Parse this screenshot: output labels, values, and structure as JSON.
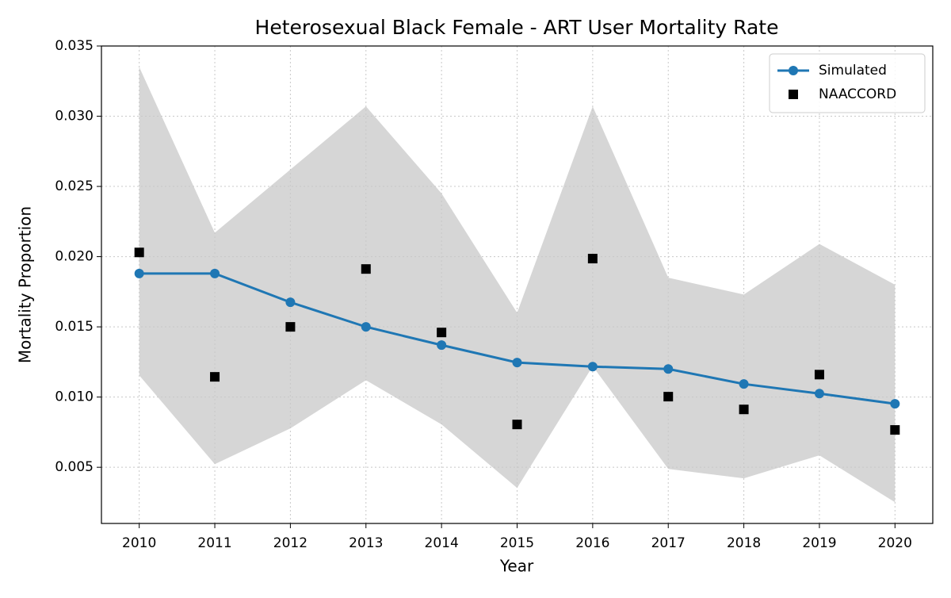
{
  "chart_data": {
    "type": "line",
    "title": "Heterosexual Black Female - ART User Mortality Rate",
    "x_label": "Year",
    "y_label": "Mortality Proportion",
    "x": [
      2010,
      2011,
      2012,
      2013,
      2014,
      2015,
      2016,
      2017,
      2018,
      2019,
      2020
    ],
    "series": [
      {
        "name": "Simulated",
        "color": "#1f77b4",
        "marker": "circle",
        "line": true,
        "values": [
          0.0188,
          0.0188,
          0.01675,
          0.015,
          0.0137,
          0.01246,
          0.01217,
          0.012,
          0.01093,
          0.01025,
          0.00952
        ]
      },
      {
        "name": "NAACCORD",
        "color": "#000000",
        "marker": "square",
        "line": false,
        "values": [
          0.0203,
          0.01144,
          0.015,
          0.01912,
          0.0146,
          0.00805,
          0.01986,
          0.01003,
          0.00912,
          0.0116,
          0.00766
        ]
      }
    ],
    "band": {
      "color": "#d6d6d6",
      "upper": [
        0.0335,
        0.0217,
        0.0262,
        0.0307,
        0.0245,
        0.016,
        0.0307,
        0.0185,
        0.0173,
        0.0209,
        0.018
      ],
      "lower": [
        0.01155,
        0.00522,
        0.00777,
        0.0112,
        0.00805,
        0.00353,
        0.0122,
        0.00488,
        0.00421,
        0.00585,
        0.00251
      ]
    },
    "xlim": [
      2009.5,
      2020.5
    ],
    "ylim": [
      0.001,
      0.035
    ],
    "xticks": [
      2010,
      2011,
      2012,
      2013,
      2014,
      2015,
      2016,
      2017,
      2018,
      2019,
      2020
    ],
    "yticks": [
      0.005,
      {
        "value": 0.01,
        "label": "0.010"
      },
      0.015,
      {
        "value": 0.02,
        "label": "0.020"
      },
      0.025,
      {
        "value": 0.03,
        "label": "0.030"
      },
      0.035
    ],
    "grid": true,
    "legend": "upper right"
  }
}
